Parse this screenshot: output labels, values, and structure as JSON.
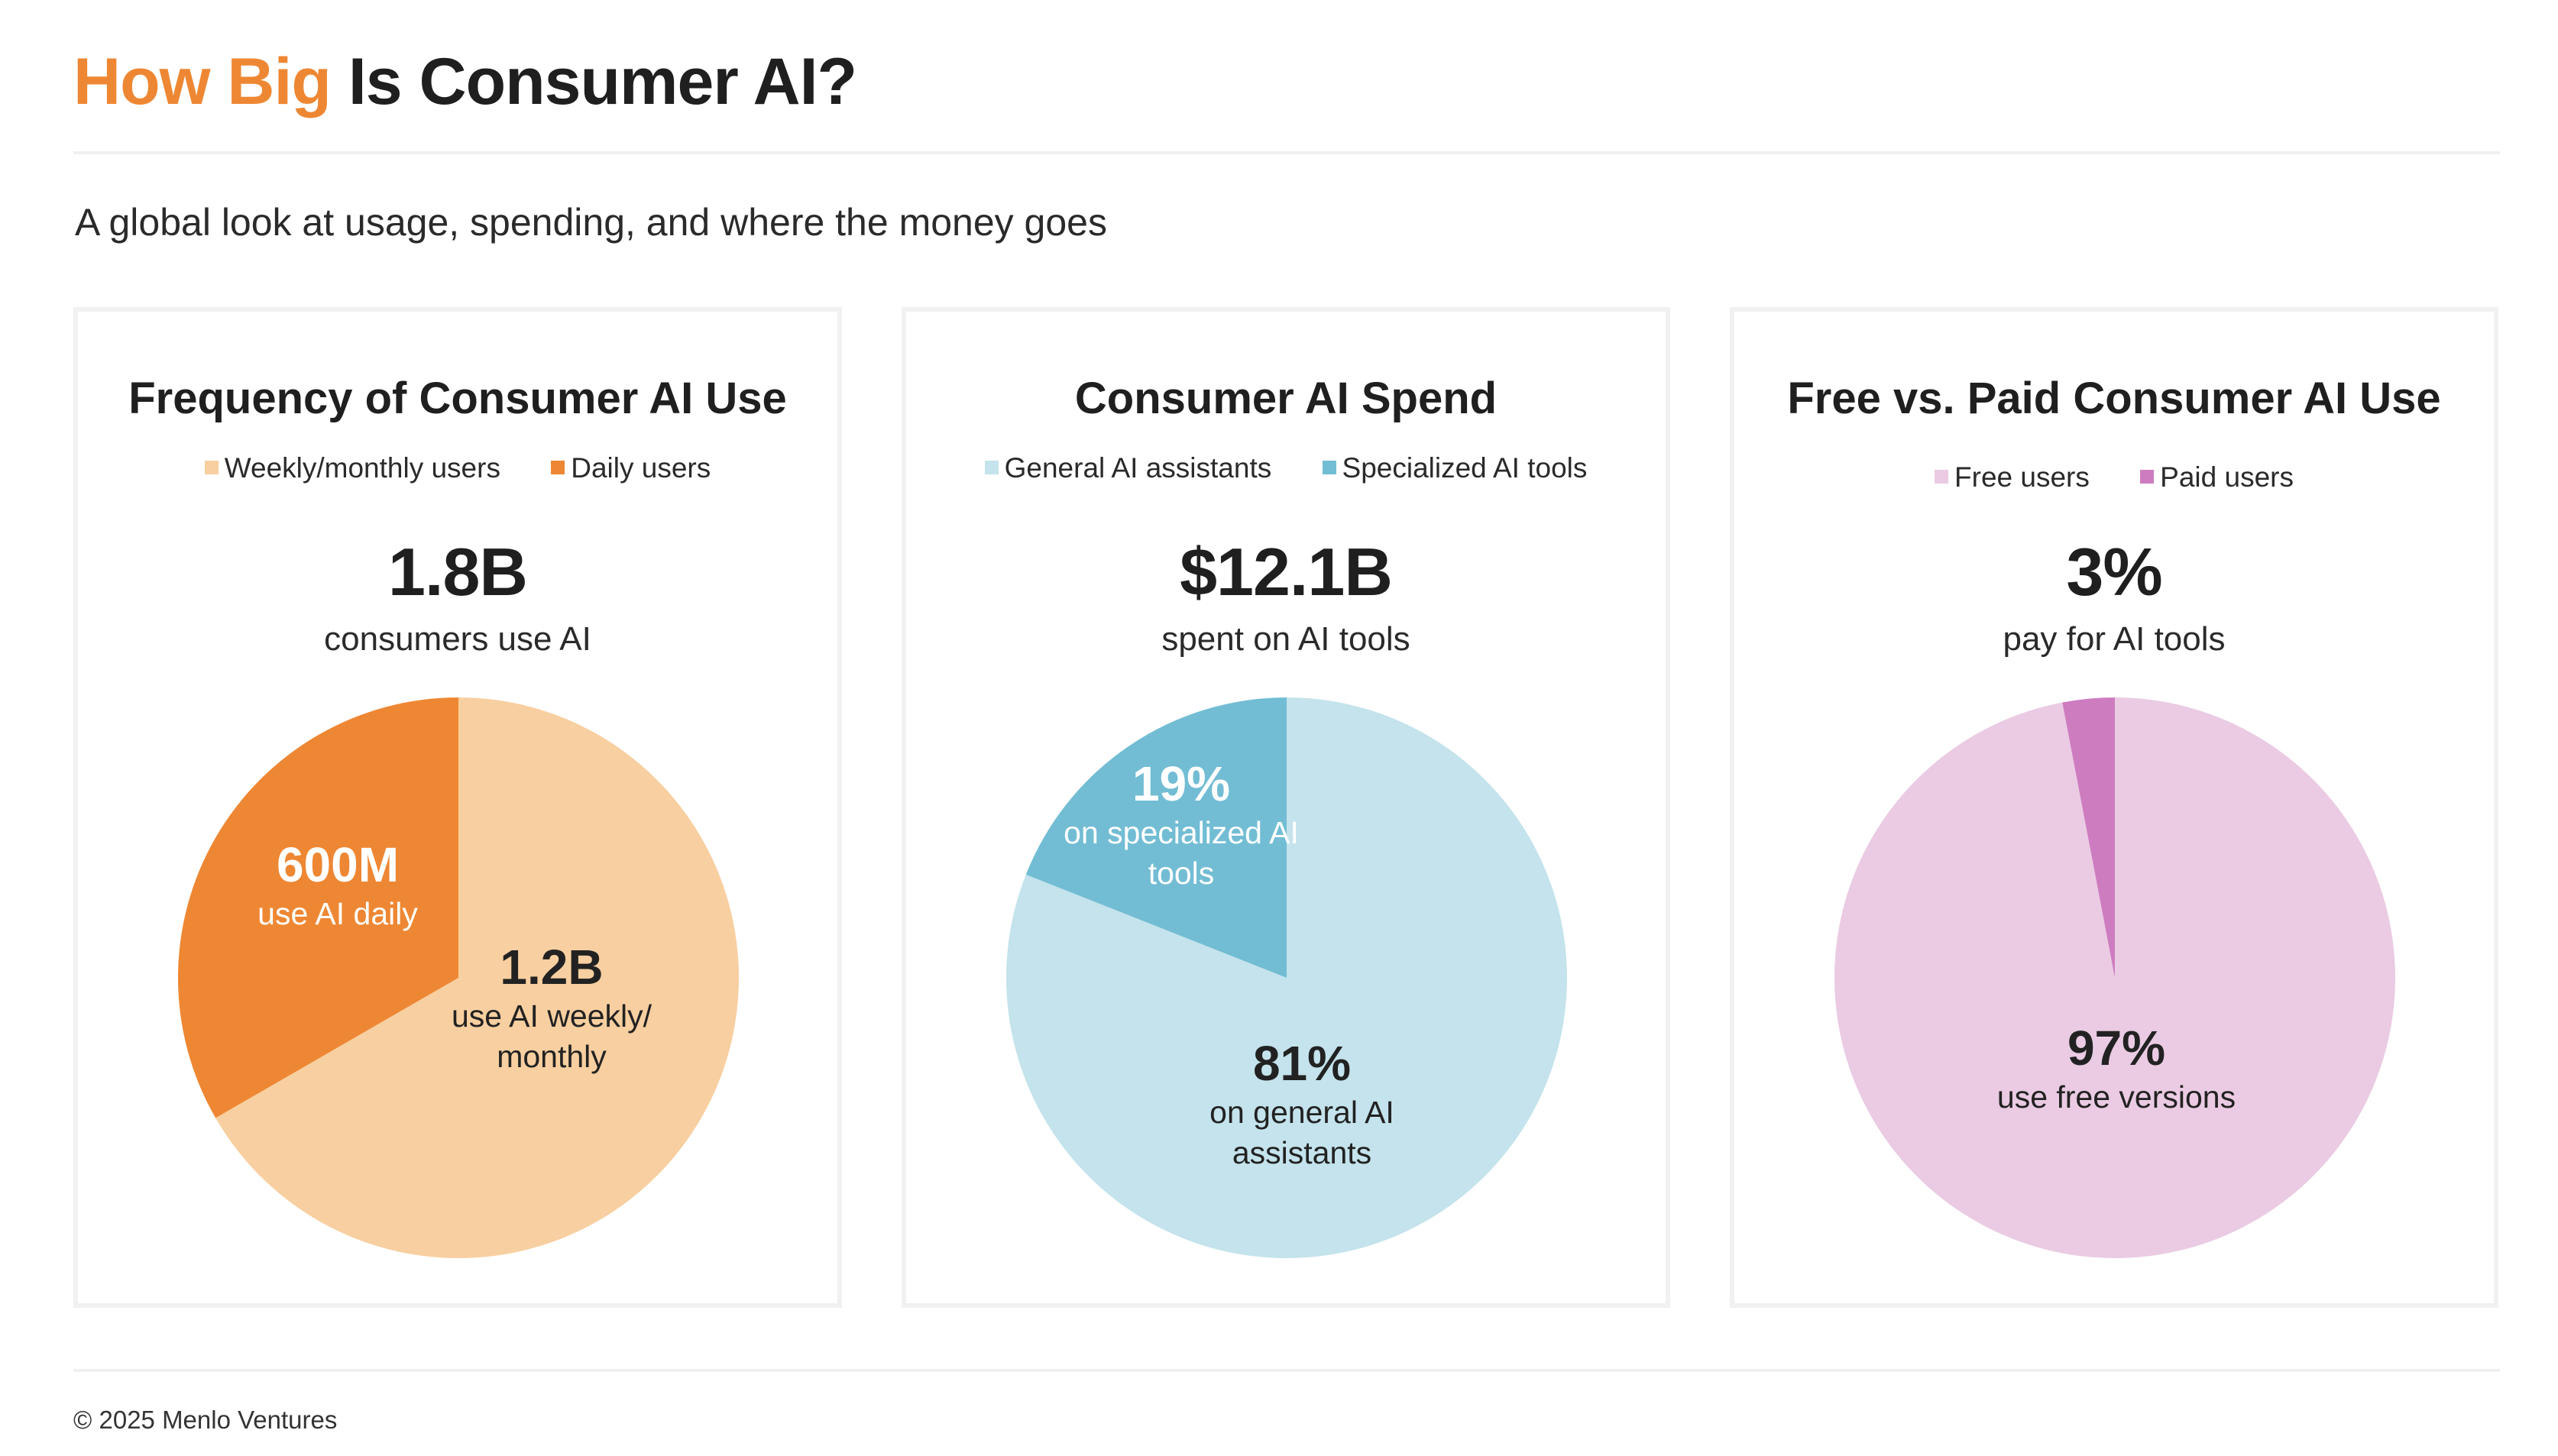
{
  "header": {
    "title_accent": "How Big",
    "title_rest": "Is Consumer AI?",
    "subtitle": "A global look at usage, spending, and where the money goes"
  },
  "footer": {
    "text": "© 2025 Menlo Ventures"
  },
  "colors": {
    "accent": "#EE8733",
    "orange_light": "#F8CFA0",
    "orange_dark": "#EE8733",
    "blue_light": "#C4E3EC",
    "blue_dark": "#72BDD4",
    "pink_light": "#EACBE3",
    "pink_dark": "#CE7CC0"
  },
  "chart_data": [
    {
      "type": "pie",
      "title": "Frequency of Consumer AI Use",
      "headline_value": "1.8B",
      "headline_text": "consumers use AI",
      "legend": [
        "Weekly/monthly users",
        "Daily users"
      ],
      "slices": [
        {
          "name": "Weekly/monthly users",
          "value": 1.2,
          "color": "#F8CFA0",
          "label_value": "1.2B",
          "label_text": "use AI weekly/ monthly"
        },
        {
          "name": "Daily users",
          "value": 0.6,
          "color": "#EE8733",
          "label_value": "600M",
          "label_text": "use AI daily"
        }
      ]
    },
    {
      "type": "pie",
      "title": "Consumer AI Spend",
      "headline_value": "$12.1B",
      "headline_text": "spent on AI tools",
      "legend": [
        "General AI assistants",
        "Specialized AI tools"
      ],
      "slices": [
        {
          "name": "General AI assistants",
          "value": 81,
          "color": "#C4E3EC",
          "label_value": "81%",
          "label_text": "on general AI assistants"
        },
        {
          "name": "Specialized AI tools",
          "value": 19,
          "color": "#72BDD4",
          "label_value": "19%",
          "label_text": "on specialized AI tools"
        }
      ]
    },
    {
      "type": "pie",
      "title": "Free vs. Paid Consumer AI Use",
      "headline_value": "3%",
      "headline_text": "pay for AI tools",
      "legend": [
        "Free users",
        "Paid users"
      ],
      "slices": [
        {
          "name": "Free users",
          "value": 97,
          "color": "#EACBE3",
          "label_value": "97%",
          "label_text": "use free versions"
        },
        {
          "name": "Paid users",
          "value": 3,
          "color": "#CE7CC0"
        }
      ]
    }
  ]
}
